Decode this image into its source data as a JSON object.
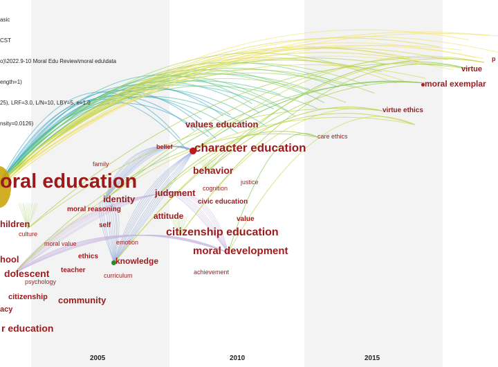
{
  "info_lines": [
    "asic",
    "CST",
    "o)\\2022.9-10 Moral Edu Review\\moral edu\\data",
    "ength=1)",
    "25), LRF=3.0, L/N=10, LBY=5, e=1.0",
    "nsity=0.0126)"
  ],
  "years": [
    "2005",
    "2010",
    "2015"
  ],
  "keywords": [
    {
      "text": "oral education"
    },
    {
      "text": "character education"
    },
    {
      "text": "citizenship education"
    },
    {
      "text": "moral development"
    },
    {
      "text": "behavior"
    },
    {
      "text": "values education"
    },
    {
      "text": "identity"
    },
    {
      "text": "judgment"
    },
    {
      "text": "attitude"
    },
    {
      "text": "knowledge"
    },
    {
      "text": "community"
    },
    {
      "text": "dolescent"
    },
    {
      "text": "hildren"
    },
    {
      "text": "hool"
    },
    {
      "text": "r education"
    },
    {
      "text": "moral exemplar"
    },
    {
      "text": "virtue"
    },
    {
      "text": "virtue ethics"
    },
    {
      "text": "care ethics"
    },
    {
      "text": "belief"
    },
    {
      "text": "family"
    },
    {
      "text": "moral reasoning"
    },
    {
      "text": "cognition"
    },
    {
      "text": "justice"
    },
    {
      "text": "civic education"
    },
    {
      "text": "value"
    },
    {
      "text": "self"
    },
    {
      "text": "culture"
    },
    {
      "text": "emotion"
    },
    {
      "text": "moral value"
    },
    {
      "text": "ethics"
    },
    {
      "text": "teacher"
    },
    {
      "text": "curriculum"
    },
    {
      "text": "psychology"
    },
    {
      "text": "citizenship"
    },
    {
      "text": "acy"
    },
    {
      "text": "achievement"
    },
    {
      "text": "p"
    }
  ]
}
